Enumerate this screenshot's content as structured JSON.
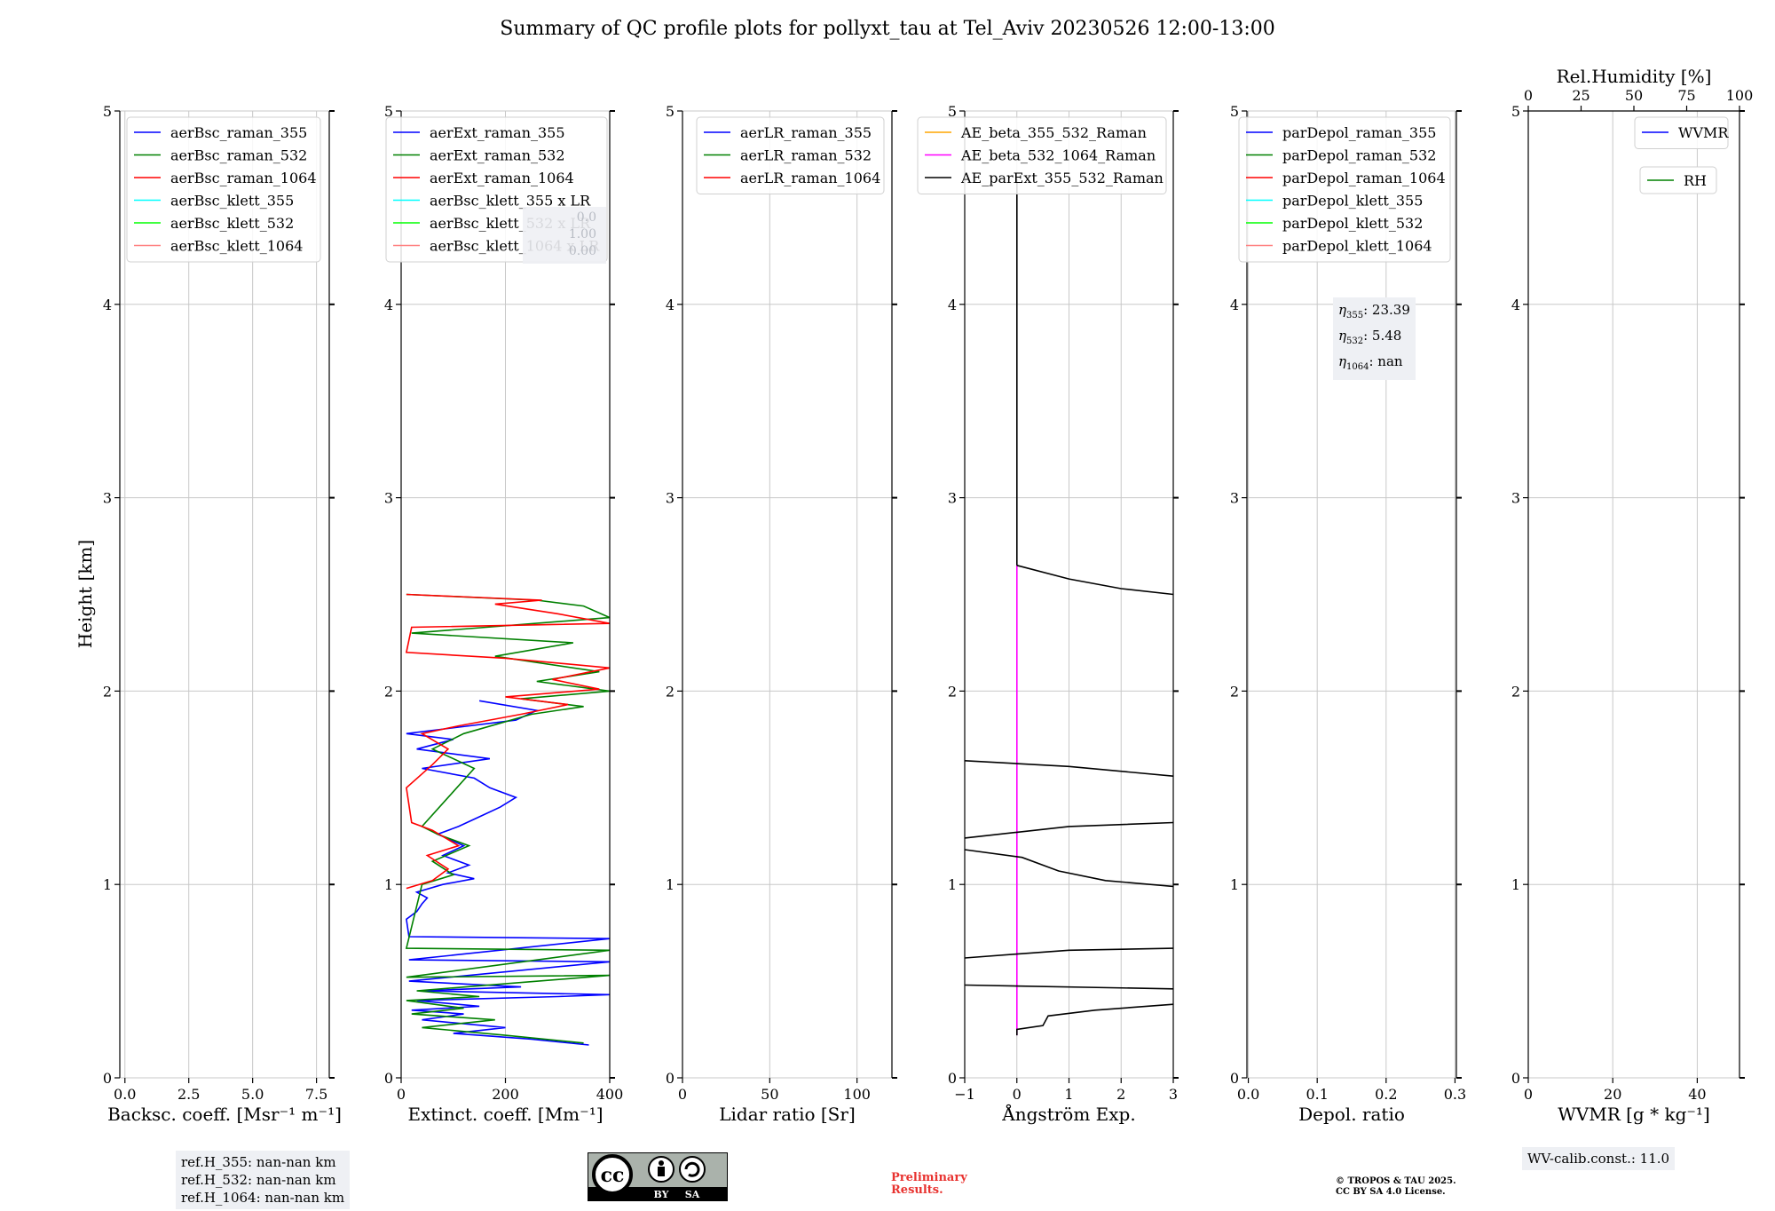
{
  "title": "Summary of QC profile plots for pollyxt_tau at Tel_Aviv 20230526 12:00-13:00",
  "chart_data": [
    {
      "type": "line",
      "id": "bsc",
      "xlabel": "Backsc. coeff. [Msr⁻¹ m⁻¹]",
      "ylabel": "Height [km]",
      "xlim": [
        -0.2,
        8.0
      ],
      "ylim": [
        0,
        5
      ],
      "xticks": [
        "0.0",
        "2.5",
        "5.0",
        "7.5"
      ],
      "xtick_values": [
        0,
        2.5,
        5,
        7.5
      ],
      "yticks": [
        "0",
        "1",
        "2",
        "3",
        "4",
        "5"
      ],
      "legend": [
        {
          "name": "aerBsc_raman_355",
          "color": "#0000ff"
        },
        {
          "name": "aerBsc_raman_532",
          "color": "#008000"
        },
        {
          "name": "aerBsc_raman_1064",
          "color": "#ff0000"
        },
        {
          "name": "aerBsc_klett_355",
          "color": "#00ffff"
        },
        {
          "name": "aerBsc_klett_532",
          "color": "#00ff00"
        },
        {
          "name": "aerBsc_klett_1064",
          "color": "#ff8080"
        }
      ],
      "series": []
    },
    {
      "type": "line",
      "id": "ext",
      "xlabel": "Extinct. coeff. [Mm⁻¹]",
      "xlim": [
        0,
        400
      ],
      "ylim": [
        0,
        5
      ],
      "xticks": [
        "0",
        "200",
        "400"
      ],
      "xtick_values": [
        0,
        200,
        400
      ],
      "yticks": [
        "0",
        "1",
        "2",
        "3",
        "4",
        "5"
      ],
      "legend": [
        {
          "name": "aerExt_raman_355",
          "color": "#0000ff"
        },
        {
          "name": "aerExt_raman_532",
          "color": "#008000"
        },
        {
          "name": "aerExt_raman_1064",
          "color": "#ff0000"
        },
        {
          "name": "aerBsc_klett_355 x LR",
          "color": "#00ffff"
        },
        {
          "name": "aerBsc_klett_532 x LR",
          "color": "#00ff00"
        },
        {
          "name": "aerBsc_klett_1064 x LR",
          "color": "#ff8080"
        }
      ],
      "series": [
        {
          "name": "aerExt_raman_355",
          "color": "#0000ff",
          "points": [
            [
              360,
              0.17
            ],
            [
              250,
              0.2
            ],
            [
              100,
              0.23
            ],
            [
              200,
              0.26
            ],
            [
              40,
              0.3
            ],
            [
              120,
              0.33
            ],
            [
              20,
              0.35
            ],
            [
              150,
              0.37
            ],
            [
              30,
              0.4
            ],
            [
              300,
              0.42
            ],
            [
              400,
              0.43
            ],
            [
              40,
              0.45
            ],
            [
              230,
              0.47
            ],
            [
              15,
              0.5
            ],
            [
              400,
              0.6
            ],
            [
              15,
              0.61
            ],
            [
              400,
              0.72
            ],
            [
              15,
              0.73
            ],
            [
              10,
              0.82
            ],
            [
              30,
              0.86
            ],
            [
              40,
              0.9
            ],
            [
              50,
              0.93
            ],
            [
              30,
              0.96
            ],
            [
              80,
              1.0
            ],
            [
              140,
              1.03
            ],
            [
              90,
              1.06
            ],
            [
              130,
              1.1
            ],
            [
              80,
              1.15
            ],
            [
              120,
              1.2
            ],
            [
              70,
              1.26
            ],
            [
              110,
              1.3
            ],
            [
              150,
              1.35
            ],
            [
              190,
              1.4
            ],
            [
              220,
              1.45
            ],
            [
              170,
              1.5
            ],
            [
              140,
              1.55
            ],
            [
              40,
              1.6
            ],
            [
              170,
              1.65
            ],
            [
              30,
              1.7
            ],
            [
              100,
              1.75
            ],
            [
              10,
              1.78
            ],
            [
              220,
              1.85
            ],
            [
              260,
              1.9
            ],
            [
              150,
              1.95
            ]
          ]
        },
        {
          "name": "aerExt_raman_532",
          "color": "#008000",
          "points": [
            [
              350,
              0.18
            ],
            [
              200,
              0.22
            ],
            [
              40,
              0.26
            ],
            [
              180,
              0.3
            ],
            [
              20,
              0.33
            ],
            [
              120,
              0.36
            ],
            [
              10,
              0.4
            ],
            [
              150,
              0.42
            ],
            [
              30,
              0.45
            ],
            [
              400,
              0.53
            ],
            [
              10,
              0.52
            ],
            [
              400,
              0.66
            ],
            [
              10,
              0.67
            ],
            [
              40,
              1.0
            ],
            [
              100,
              1.05
            ],
            [
              60,
              1.12
            ],
            [
              130,
              1.2
            ],
            [
              70,
              1.26
            ],
            [
              40,
              1.3
            ],
            [
              90,
              1.45
            ],
            [
              140,
              1.6
            ],
            [
              60,
              1.7
            ],
            [
              120,
              1.78
            ],
            [
              250,
              1.88
            ],
            [
              350,
              1.92
            ],
            [
              230,
              1.96
            ],
            [
              400,
              2.0
            ],
            [
              260,
              2.05
            ],
            [
              380,
              2.1
            ],
            [
              180,
              2.18
            ],
            [
              330,
              2.25
            ],
            [
              20,
              2.3
            ],
            [
              400,
              2.38
            ],
            [
              350,
              2.44
            ],
            [
              260,
              2.47
            ],
            [
              10,
              2.5
            ]
          ]
        },
        {
          "name": "aerExt_raman_1064",
          "color": "#ff0000",
          "points": [
            [
              10,
              0.98
            ],
            [
              60,
              1.02
            ],
            [
              90,
              1.08
            ],
            [
              50,
              1.15
            ],
            [
              110,
              1.2
            ],
            [
              60,
              1.28
            ],
            [
              20,
              1.32
            ],
            [
              10,
              1.5
            ],
            [
              60,
              1.62
            ],
            [
              90,
              1.7
            ],
            [
              40,
              1.78
            ],
            [
              110,
              1.82
            ],
            [
              230,
              1.88
            ],
            [
              320,
              1.93
            ],
            [
              200,
              1.97
            ],
            [
              380,
              2.01
            ],
            [
              290,
              2.06
            ],
            [
              400,
              2.12
            ],
            [
              200,
              2.17
            ],
            [
              10,
              2.2
            ],
            [
              20,
              2.33
            ],
            [
              400,
              2.35
            ],
            [
              300,
              2.4
            ],
            [
              180,
              2.45
            ],
            [
              270,
              2.47
            ],
            [
              10,
              2.5
            ]
          ]
        }
      ]
    },
    {
      "type": "line",
      "id": "lr",
      "xlabel": "Lidar ratio [Sr]",
      "xlim": [
        0,
        120
      ],
      "ylim": [
        0,
        5
      ],
      "xticks": [
        "0",
        "50",
        "100"
      ],
      "xtick_values": [
        0,
        50,
        100
      ],
      "yticks": [
        "0",
        "1",
        "2",
        "3",
        "4",
        "5"
      ],
      "legend": [
        {
          "name": "aerLR_raman_355",
          "color": "#0000ff"
        },
        {
          "name": "aerLR_raman_532",
          "color": "#008000"
        },
        {
          "name": "aerLR_raman_1064",
          "color": "#ff0000"
        }
      ],
      "series": []
    },
    {
      "type": "line",
      "id": "ae",
      "xlabel": "Ångström Exp.",
      "xlim": [
        -1,
        3
      ],
      "ylim": [
        0,
        5
      ],
      "xticks": [
        "−1",
        "0",
        "1",
        "2",
        "3"
      ],
      "xtick_values": [
        -1,
        0,
        1,
        2,
        3
      ],
      "yticks": [
        "0",
        "1",
        "2",
        "3",
        "4",
        "5"
      ],
      "legend": [
        {
          "name": "AE_beta_355_532_Raman",
          "color": "#ffa500"
        },
        {
          "name": "AE_beta_532_1064_Raman",
          "color": "#ff00ff"
        },
        {
          "name": "AE_parExt_355_532_Raman",
          "color": "#000000"
        }
      ],
      "series": [
        {
          "name": "AE_beta_532_1064_Raman",
          "color": "#ff00ff",
          "points": [
            [
              0,
              0.22
            ],
            [
              0,
              2.65
            ]
          ]
        },
        {
          "name": "AE_parExt_355_532_Raman",
          "color": "#000000",
          "points": [
            [
              0,
              0.22
            ],
            [
              0,
              0.25
            ],
            [
              0.5,
              0.27
            ],
            [
              0.6,
              0.32
            ],
            [
              1.5,
              0.35
            ],
            [
              3,
              0.38
            ]
          ]
        },
        {
          "name": "AE_parExt_355_532_Raman",
          "color": "#000000",
          "points": [
            [
              -1,
              0.48
            ],
            [
              3,
              0.46
            ]
          ]
        },
        {
          "name": "AE_parExt_355_532_Raman",
          "color": "#000000",
          "points": [
            [
              -1,
              0.62
            ],
            [
              0,
              0.64
            ],
            [
              1,
              0.66
            ],
            [
              3,
              0.67
            ]
          ]
        },
        {
          "name": "AE_parExt_355_532_Raman",
          "color": "#000000",
          "points": [
            [
              -1,
              1.18
            ],
            [
              0.1,
              1.14
            ],
            [
              0.8,
              1.07
            ],
            [
              1.7,
              1.02
            ],
            [
              3,
              0.99
            ]
          ]
        },
        {
          "name": "AE_parExt_355_532_Raman",
          "color": "#000000",
          "points": [
            [
              -1,
              1.24
            ],
            [
              0,
              1.27
            ],
            [
              1,
              1.3
            ],
            [
              3,
              1.32
            ]
          ]
        },
        {
          "name": "AE_parExt_355_532_Raman",
          "color": "#000000",
          "points": [
            [
              -1,
              1.64
            ],
            [
              1,
              1.61
            ],
            [
              3,
              1.56
            ]
          ]
        },
        {
          "name": "AE_parExt_355_532_Raman",
          "color": "#000000",
          "points": [
            [
              0,
              2.65
            ],
            [
              1,
              2.58
            ],
            [
              2,
              2.53
            ],
            [
              3,
              2.5
            ]
          ]
        },
        {
          "name": "AE_parExt_355_532_Raman",
          "color": "#000000",
          "points": [
            [
              0,
              4.65
            ],
            [
              0,
              2.65
            ]
          ]
        }
      ]
    },
    {
      "type": "line",
      "id": "depol",
      "xlabel": "Depol. ratio",
      "xlim": [
        -0.002,
        0.302
      ],
      "ylim": [
        0,
        5
      ],
      "xticks": [
        "0.0",
        "0.1",
        "0.2",
        "0.3"
      ],
      "xtick_values": [
        0,
        0.1,
        0.2,
        0.3
      ],
      "yticks": [
        "0",
        "1",
        "2",
        "3",
        "4",
        "5"
      ],
      "legend": [
        {
          "name": "parDepol_raman_355",
          "color": "#0000ff"
        },
        {
          "name": "parDepol_raman_532",
          "color": "#008000"
        },
        {
          "name": "parDepol_raman_1064",
          "color": "#ff0000"
        },
        {
          "name": "parDepol_klett_355",
          "color": "#00ffff"
        },
        {
          "name": "parDepol_klett_532",
          "color": "#00ff00"
        },
        {
          "name": "parDepol_klett_1064",
          "color": "#ff8080"
        }
      ],
      "series": []
    },
    {
      "type": "line",
      "id": "wv",
      "xlabel": "WVMR [g * kg⁻¹]",
      "xlim": [
        0,
        50
      ],
      "ylim": [
        0,
        5
      ],
      "xticks": [
        "0",
        "20",
        "40"
      ],
      "xtick_values": [
        0,
        20,
        40
      ],
      "yticks": [
        "0",
        "1",
        "2",
        "3",
        "4",
        "5"
      ],
      "top_xlabel": "Rel.Humidity [%]",
      "top_xlim": [
        0,
        100
      ],
      "top_xticks": [
        "0",
        "25",
        "50",
        "75",
        "100"
      ],
      "top_xtick_values": [
        0,
        25,
        50,
        75,
        100
      ],
      "legend": [
        {
          "name": "WVMR",
          "color": "#0000ff"
        }
      ],
      "legend2": [
        {
          "name": "RH",
          "color": "#008000"
        }
      ],
      "series": []
    }
  ],
  "annotations": {
    "ext_faint": [
      "0.0",
      "1.00",
      "0.00"
    ],
    "eta_lines": [
      {
        "sub": "355",
        "value": "23.39"
      },
      {
        "sub": "532",
        "value": "5.48"
      },
      {
        "sub": "1064",
        "value": "nan"
      }
    ],
    "refH": [
      "ref.H_355: nan-nan km",
      "ref.H_532: nan-nan km",
      "ref.H_1064: nan-nan km"
    ],
    "wv_calib": "WV-calib.const.: 11.0",
    "preliminary": [
      "Preliminary",
      "Results."
    ],
    "copyright": [
      "© TROPOS & TAU 2025.",
      "CC BY SA 4.0 License."
    ],
    "license_badge": {
      "cc": "cc",
      "by": "BY",
      "sa": "SA"
    }
  }
}
